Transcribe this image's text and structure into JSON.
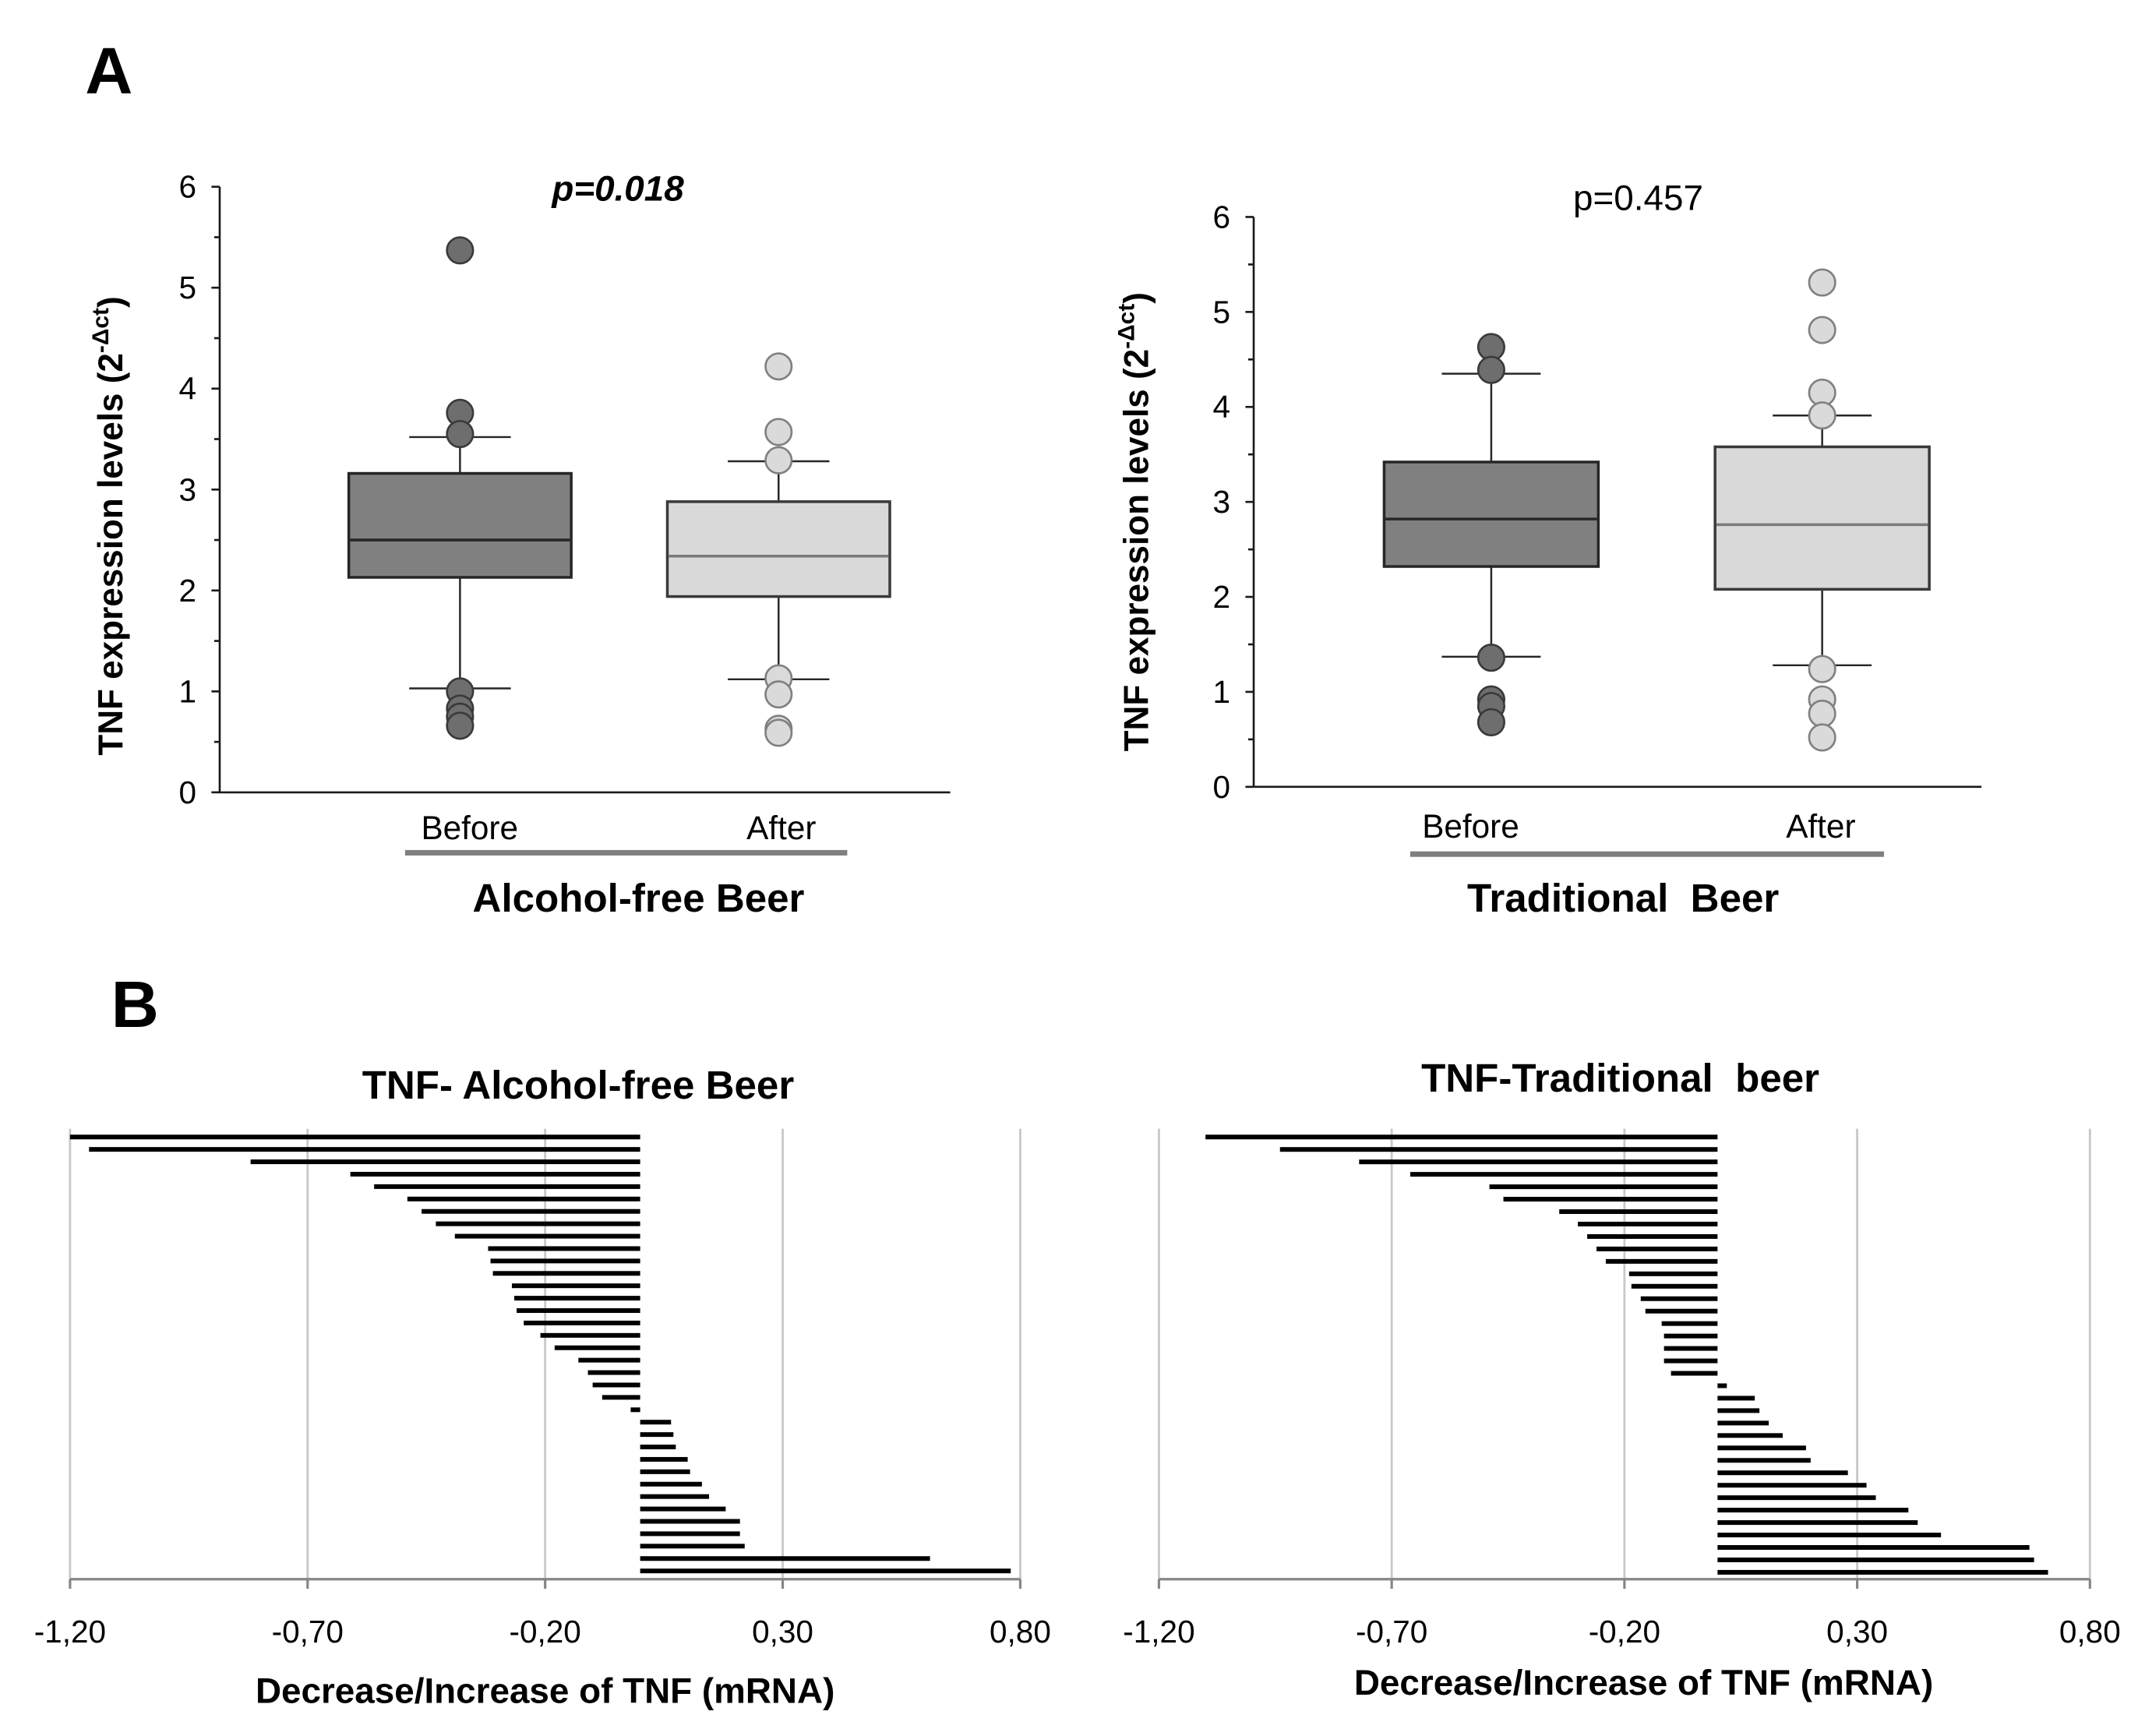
{
  "figure": {
    "panel_a_label": "A",
    "panel_b_label": "B"
  },
  "chart_data": [
    {
      "type": "box",
      "title": "p=0.018",
      "ylabel": "TNF expression levels (2",
      "ylabel_superscript": "-Δct",
      "ylabel_suffix": ")",
      "ylim": [
        0,
        6
      ],
      "yticks": [
        0,
        1,
        2,
        3,
        4,
        5,
        6
      ],
      "ytick_labels": [
        "0",
        "1",
        "2",
        "3",
        "4",
        "5",
        "6"
      ],
      "grid": false,
      "categories": [
        "Before",
        "After"
      ],
      "group_label": "Alcohol-free Beer",
      "group_underline_color": "#7f7f7f",
      "series": [
        {
          "box_color": "#808080",
          "edge_color": "#262626",
          "median_color": "#262626",
          "marker_color": "#6e6e6e",
          "marker_edge_color": "#3a3a3a",
          "whisker_low": 1.03,
          "q1": 2.13,
          "median": 2.5,
          "q3": 3.16,
          "whisker_high": 3.52,
          "outliers": [
            5.37,
            3.76,
            3.55,
            1.0,
            0.83,
            0.75,
            0.66
          ]
        },
        {
          "box_color": "#d9d9d9",
          "edge_color": "#3a3a3a",
          "median_color": "#7a7a7a",
          "marker_color": "#dadada",
          "marker_edge_color": "#808080",
          "whisker_low": 1.12,
          "q1": 1.94,
          "median": 2.34,
          "q3": 2.88,
          "whisker_high": 3.28,
          "outliers": [
            4.22,
            3.57,
            3.29,
            1.13,
            0.97,
            0.63,
            0.59
          ]
        }
      ]
    },
    {
      "type": "box",
      "title": "p=0.457",
      "ylabel": "TNF expression levels (2",
      "ylabel_superscript": "-Δct",
      "ylabel_suffix": ")",
      "ylim": [
        0,
        6
      ],
      "yticks": [
        0,
        1,
        2,
        3,
        4,
        5,
        6
      ],
      "ytick_labels": [
        "0",
        "1",
        "2",
        "3",
        "4",
        "5",
        "6"
      ],
      "grid": false,
      "categories": [
        "Before",
        "After"
      ],
      "group_label": "Traditional  Beer",
      "group_underline_color": "#7f7f7f",
      "series": [
        {
          "box_color": "#808080",
          "edge_color": "#262626",
          "median_color": "#262626",
          "marker_color": "#6e6e6e",
          "marker_edge_color": "#3a3a3a",
          "whisker_low": 1.37,
          "q1": 2.32,
          "median": 2.82,
          "q3": 3.42,
          "whisker_high": 4.35,
          "outliers": [
            4.63,
            4.39,
            1.36,
            0.92,
            0.85,
            0.68
          ]
        },
        {
          "box_color": "#d9d9d9",
          "edge_color": "#3a3a3a",
          "median_color": "#7a7a7a",
          "marker_color": "#dadada",
          "marker_edge_color": "#808080",
          "whisker_low": 1.28,
          "q1": 2.08,
          "median": 2.76,
          "q3": 3.58,
          "whisker_high": 3.91,
          "outliers": [
            5.31,
            4.81,
            4.15,
            3.91,
            1.24,
            0.92,
            0.77,
            0.52
          ]
        }
      ]
    },
    {
      "type": "bar",
      "title": "TNF- Alcohol-free Beer",
      "xlabel": "Decrease/Increase of TNF (mRNA)",
      "xlim": [
        -1.2,
        0.8
      ],
      "xticks": [
        -1.2,
        -0.7,
        -0.2,
        0.3,
        0.8
      ],
      "xtick_labels": [
        "-1,20",
        "-0,70",
        "-0,20",
        "0,30",
        "0,80"
      ],
      "grid": true,
      "bar_color": "#000000",
      "values": [
        -1.2,
        -1.16,
        -0.82,
        -0.61,
        -0.56,
        -0.49,
        -0.46,
        -0.43,
        -0.39,
        -0.32,
        -0.315,
        -0.31,
        -0.27,
        -0.265,
        -0.26,
        -0.245,
        -0.21,
        -0.18,
        -0.13,
        -0.11,
        -0.1,
        -0.08,
        -0.02,
        0.065,
        0.07,
        0.075,
        0.1,
        0.105,
        0.13,
        0.145,
        0.18,
        0.21,
        0.21,
        0.22,
        0.61,
        0.78
      ]
    },
    {
      "type": "bar",
      "title": "TNF-Traditional  beer",
      "xlabel": "Decrease/Increase of TNF (mRNA)",
      "xlim": [
        -1.2,
        0.8
      ],
      "xticks": [
        -1.2,
        -0.7,
        -0.2,
        0.3,
        0.8
      ],
      "xtick_labels": [
        "-1,20",
        "-0,70",
        "-0,20",
        "0,30",
        "0,80"
      ],
      "grid": true,
      "bar_color": "#000000",
      "values": [
        -1.1,
        -0.94,
        -0.77,
        -0.66,
        -0.49,
        -0.46,
        -0.34,
        -0.3,
        -0.28,
        -0.26,
        -0.24,
        -0.19,
        -0.185,
        -0.165,
        -0.155,
        -0.12,
        -0.115,
        -0.115,
        -0.115,
        -0.1,
        0.02,
        0.08,
        0.09,
        0.11,
        0.14,
        0.19,
        0.2,
        0.28,
        0.32,
        0.34,
        0.41,
        0.43,
        0.48,
        0.67,
        0.68,
        0.71
      ]
    }
  ]
}
